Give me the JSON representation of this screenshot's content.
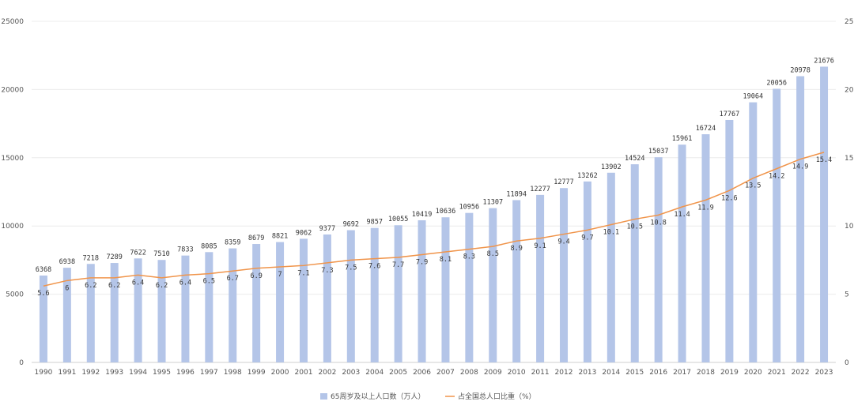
{
  "chart_data": {
    "type": "bar",
    "categories": [
      "1990",
      "1991",
      "1992",
      "1993",
      "1994",
      "1995",
      "1996",
      "1997",
      "1998",
      "1999",
      "2000",
      "2001",
      "2002",
      "2003",
      "2004",
      "2005",
      "2006",
      "2007",
      "2008",
      "2009",
      "2010",
      "2011",
      "2012",
      "2013",
      "2014",
      "2015",
      "2016",
      "2017",
      "2018",
      "2019",
      "2020",
      "2021",
      "2022",
      "2023"
    ],
    "series": [
      {
        "name": "65周岁及以上人口数（万人）",
        "type": "bar",
        "axis": "left",
        "color": "#b4c5e8",
        "values": [
          6368,
          6938,
          7218,
          7289,
          7622,
          7510,
          7833,
          8085,
          8359,
          8679,
          8821,
          9062,
          9377,
          9692,
          9857,
          10055,
          10419,
          10636,
          10956,
          11307,
          11894,
          12277,
          12777,
          13262,
          13902,
          14524,
          15037,
          15961,
          16724,
          17767,
          19064,
          20056,
          20978,
          21676
        ]
      },
      {
        "name": "占全国总人口比重（%）",
        "type": "line",
        "axis": "right",
        "color": "#f0944a",
        "values": [
          5.6,
          6,
          6.2,
          6.2,
          6.4,
          6.2,
          6.4,
          6.5,
          6.7,
          6.9,
          7,
          7.1,
          7.3,
          7.5,
          7.6,
          7.7,
          7.9,
          8.1,
          8.3,
          8.5,
          8.9,
          9.1,
          9.4,
          9.7,
          10.1,
          10.5,
          10.8,
          11.4,
          11.9,
          12.6,
          13.5,
          14.2,
          14.9,
          15.4
        ]
      }
    ],
    "y_left": {
      "min": 0,
      "max": 25000,
      "ticks": [
        0,
        5000,
        10000,
        15000,
        20000,
        25000
      ]
    },
    "y_right": {
      "min": 0,
      "max": 25,
      "ticks": [
        0,
        5,
        10,
        15,
        20,
        25
      ]
    },
    "grid": true,
    "legend_position": "bottom-center"
  }
}
